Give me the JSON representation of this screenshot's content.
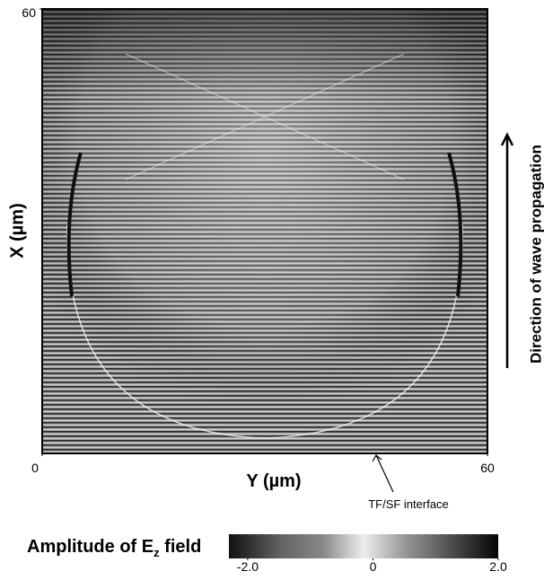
{
  "chart_data": {
    "type": "heatmap",
    "xlabel": "Y (µm)",
    "ylabel": "X (µm)",
    "xlim": [
      0,
      60
    ],
    "xticks": [
      0,
      60
    ],
    "ylim": [
      0,
      60
    ],
    "yticks": [
      60
    ],
    "annotations": [
      "TF/SF interface",
      "Direction of wave propagation"
    ],
    "colorbar": {
      "label_parts": [
        "Amplitude of E",
        "z",
        " field"
      ],
      "clim": [
        -2.3,
        2.0
      ],
      "ticks": [
        {
          "value": -2,
          "label": "-2.0"
        },
        0,
        {
          "value": 2,
          "label": "2.0"
        }
      ]
    }
  }
}
